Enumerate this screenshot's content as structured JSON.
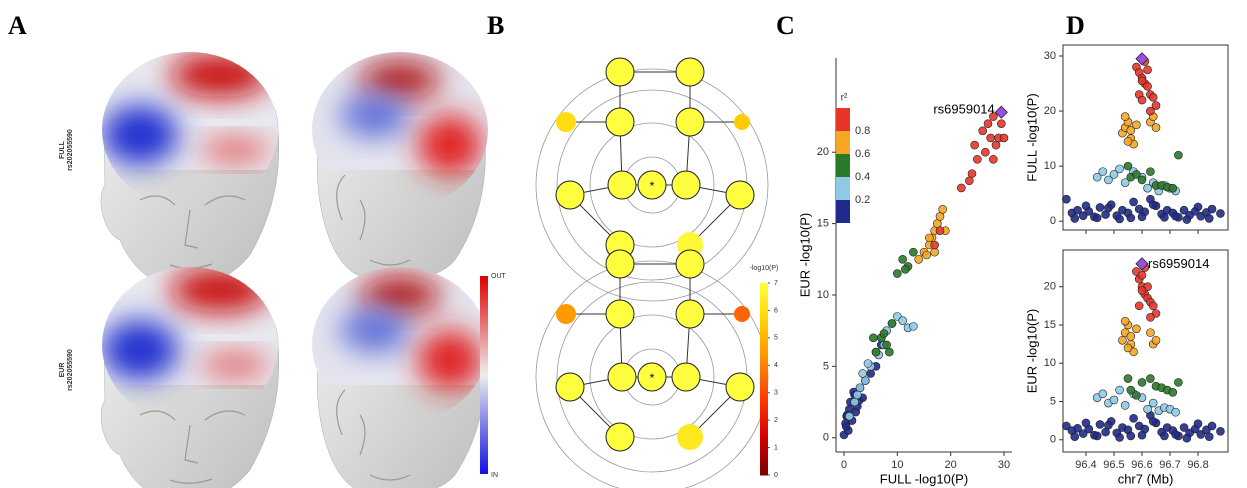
{
  "panel_labels": [
    "A",
    "B",
    "C",
    "D"
  ],
  "panel_a": {
    "rows": [
      {
        "label": "FULL",
        "snp": "rs202055590"
      },
      {
        "label": "EUR",
        "snp": "rs202055590"
      }
    ],
    "colorbar": {
      "top": "OUT",
      "bottom": "IN"
    }
  },
  "panel_b": {
    "colorbar_title": "-log10(P)",
    "lim": [
      0,
      7
    ],
    "ticks": [
      0,
      1,
      2,
      3,
      4,
      5,
      6,
      7
    ],
    "colormap": [
      "#7a0000",
      "#d40000",
      "#ff3b00",
      "#ff8c00",
      "#ffd000",
      "#ffff40"
    ],
    "center_label": "*",
    "networks": [
      {
        "values": [
          7,
          7,
          7,
          7,
          6,
          5.5,
          7,
          7,
          7,
          7,
          7,
          7,
          6.8
        ]
      },
      {
        "values": [
          7,
          7,
          7,
          7,
          4.5,
          3.5,
          7,
          7,
          7,
          7,
          7,
          7,
          6.3
        ]
      }
    ]
  },
  "chart_data": [
    {
      "type": "scatter",
      "xlabel": "FULL -log10(P)",
      "ylabel": "EUR -log10(P)",
      "xlim": [
        -1.5,
        31.5
      ],
      "ylim": [
        -1,
        26.6
      ],
      "xticks": [
        0,
        10,
        20,
        30
      ],
      "yticks": [
        0,
        5,
        10,
        15,
        20
      ],
      "annotation": "rs6959014",
      "legend": {
        "title": "r²",
        "ticks": [
          0.2,
          0.4,
          0.6,
          0.8
        ],
        "colors": [
          "#1f2a8a",
          "#8ecae6",
          "#2a7a2a",
          "#f5a623",
          "#e8352a"
        ]
      },
      "series": [
        {
          "color": "#1f2a8a",
          "x": [
            0,
            0.3,
            0.5,
            0.8,
            1,
            1.2,
            1.5,
            2,
            2.2,
            2.5,
            3,
            3.5,
            4,
            5,
            0.4,
            1.8,
            2.8,
            6,
            7,
            0.6
          ],
          "values": [
            0.2,
            1,
            1.5,
            0.5,
            2,
            2.5,
            1.2,
            3,
            1.8,
            2.2,
            3.5,
            2.8,
            4,
            4.5,
            0.8,
            3.2,
            2.6,
            5,
            6.5,
            1.6
          ]
        },
        {
          "color": "#8ecae6",
          "x": [
            1,
            2,
            2.5,
            3,
            4,
            5,
            6,
            7,
            8,
            9,
            10,
            11,
            12,
            13,
            3.5,
            4.5,
            6.5,
            7.5
          ],
          "values": [
            1.5,
            2.5,
            3,
            3.5,
            4,
            5,
            6,
            7,
            7.5,
            8,
            8.5,
            8.2,
            7.7,
            7.8,
            4.5,
            5.2,
            5.8,
            6.5
          ]
        },
        {
          "color": "#2a7a2a",
          "x": [
            6,
            7,
            8,
            9,
            10,
            11,
            12,
            13,
            8.5,
            11.5,
            5.5,
            7.5
          ],
          "values": [
            6,
            7,
            6.5,
            8,
            11.5,
            12.5,
            12,
            13,
            6,
            11.8,
            7,
            7.3
          ]
        },
        {
          "color": "#f5a623",
          "x": [
            14,
            15,
            16,
            16.5,
            17,
            17.5,
            18,
            18.5,
            19,
            15.5,
            16,
            17
          ],
          "values": [
            12.5,
            13,
            13.5,
            14,
            14.5,
            15,
            15.5,
            16,
            14.5,
            12.8,
            14,
            13
          ]
        },
        {
          "color": "#e8352a",
          "x": [
            17,
            18,
            22,
            24,
            25,
            26,
            27,
            27.5,
            28,
            28.5,
            29,
            29.5,
            30,
            28,
            26.5,
            24.5,
            23.5
          ],
          "values": [
            13.5,
            14.5,
            17.5,
            18.5,
            19.5,
            21.5,
            22,
            21,
            22.5,
            20.5,
            21,
            22,
            21,
            19.5,
            20,
            20.5,
            18
          ]
        },
        {
          "color": "#9b4fe0",
          "marker": "diamond",
          "x": [
            29.5
          ],
          "values": [
            22.8
          ]
        }
      ]
    },
    {
      "type": "scatter",
      "ylabel": "FULL -log10(P)",
      "xtick_labels": false,
      "xlim": [
        96.318,
        96.907
      ],
      "ylim": [
        -1.6,
        32
      ],
      "xticks": [
        96.4,
        96.5,
        96.6,
        96.7,
        96.8
      ],
      "yticks": [
        0,
        10,
        20,
        30
      ],
      "series": [
        {
          "color": "#1f2a8a",
          "x": [
            96.33,
            96.35,
            96.37,
            96.39,
            96.41,
            96.43,
            96.45,
            96.47,
            96.49,
            96.51,
            96.53,
            96.55,
            96.57,
            96.59,
            96.61,
            96.63,
            96.65,
            96.67,
            96.69,
            96.71,
            96.73,
            96.75,
            96.77,
            96.79,
            96.81,
            96.83,
            96.85,
            96.88,
            96.36,
            96.44,
            96.52,
            96.6,
            96.68,
            96.76,
            96.84,
            96.4,
            96.48,
            96.56,
            96.64,
            96.72,
            96.8
          ],
          "values": [
            4,
            1.5,
            2,
            1,
            1.8,
            0.8,
            2.5,
            1.2,
            3,
            1,
            2,
            1.5,
            3.5,
            2.2,
            1.7,
            4,
            2.8,
            1.3,
            2,
            1.5,
            0.7,
            2,
            1.1,
            1.8,
            0.9,
            1.6,
            2.2,
            1.4,
            0.5,
            0.6,
            0.4,
            0.8,
            0.7,
            0.3,
            0.5,
            2.8,
            2.4,
            0.6,
            3,
            0.9,
            2.6
          ]
        },
        {
          "color": "#8ecae6",
          "x": [
            96.44,
            96.46,
            96.48,
            96.5,
            96.52,
            96.54,
            96.62,
            96.64,
            96.66,
            96.68,
            96.7,
            96.72,
            96.6,
            96.57
          ],
          "values": [
            8,
            9,
            7.5,
            8.5,
            9.5,
            7,
            6,
            7,
            5.5,
            6.5,
            6,
            5.5,
            8,
            9
          ]
        },
        {
          "color": "#2a7a2a",
          "x": [
            96.55,
            96.56,
            96.6,
            96.63,
            96.65,
            96.67,
            96.69,
            96.71,
            96.73,
            96.58
          ],
          "values": [
            10,
            8,
            7.5,
            9,
            6.5,
            6.5,
            6.2,
            6,
            12,
            8.5
          ]
        },
        {
          "color": "#f5a623",
          "x": [
            96.53,
            96.54,
            96.55,
            96.56,
            96.57,
            96.54,
            96.56,
            96.63,
            96.64,
            96.65,
            96.55,
            96.58
          ],
          "values": [
            16,
            17,
            18,
            15,
            14,
            19,
            16.5,
            18,
            19,
            17,
            14.5,
            17.5
          ]
        },
        {
          "color": "#e8352a",
          "x": [
            96.58,
            96.59,
            96.6,
            96.61,
            96.62,
            96.59,
            96.6,
            96.61,
            96.62,
            96.63,
            96.64,
            96.65,
            96.63,
            96.6
          ],
          "values": [
            28,
            27,
            26,
            25,
            24.5,
            23,
            22,
            29,
            27.5,
            23,
            22.5,
            21,
            20,
            25.5
          ]
        },
        {
          "color": "#9b4fe0",
          "marker": "diamond",
          "x": [
            96.6
          ],
          "values": [
            29.5
          ]
        }
      ]
    },
    {
      "type": "scatter",
      "xlabel": "chr7 (Mb)",
      "ylabel": "EUR -log10(P)",
      "annotation": "rs6959014",
      "xlim": [
        96.318,
        96.907
      ],
      "ylim": [
        -1.6,
        24.8
      ],
      "xticks": [
        96.4,
        96.5,
        96.6,
        96.7,
        96.8
      ],
      "yticks": [
        0,
        5,
        10,
        15,
        20
      ],
      "series": [
        {
          "color": "#1f2a8a",
          "x": [
            96.33,
            96.35,
            96.37,
            96.39,
            96.41,
            96.43,
            96.45,
            96.47,
            96.49,
            96.51,
            96.53,
            96.55,
            96.57,
            96.59,
            96.61,
            96.63,
            96.65,
            96.67,
            96.69,
            96.71,
            96.73,
            96.75,
            96.77,
            96.79,
            96.81,
            96.83,
            96.85,
            96.88,
            96.36,
            96.44,
            96.52,
            96.6,
            96.68,
            96.76,
            96.84,
            96.4,
            96.48,
            96.56,
            96.64,
            96.72,
            96.8
          ],
          "values": [
            1.8,
            1.2,
            1.5,
            0.8,
            1.4,
            0.6,
            2,
            1,
            2.4,
            0.9,
            1.6,
            1.3,
            2.8,
            1.8,
            1.4,
            3.2,
            2.2,
            1,
            1.6,
            1.2,
            0.5,
            1.6,
            0.9,
            1.4,
            0.7,
            1.3,
            1.8,
            1.1,
            0.4,
            0.5,
            0.3,
            0.6,
            0.5,
            0.2,
            0.4,
            2.2,
            1.9,
            0.5,
            2.4,
            0.7,
            2.1
          ]
        },
        {
          "color": "#8ecae6",
          "x": [
            96.44,
            96.46,
            96.48,
            96.5,
            96.52,
            96.54,
            96.62,
            96.64,
            96.66,
            96.68,
            96.7,
            96.72,
            96.6,
            96.57
          ],
          "values": [
            5.5,
            6,
            4.8,
            5.2,
            6.5,
            4.5,
            4,
            4.8,
            3.8,
            4.2,
            4,
            3.6,
            5.5,
            6
          ]
        },
        {
          "color": "#2a7a2a",
          "x": [
            96.55,
            96.56,
            96.6,
            96.63,
            96.65,
            96.67,
            96.69,
            96.71,
            96.73,
            96.58
          ],
          "values": [
            8,
            6.5,
            7.5,
            8,
            7,
            6.8,
            6.5,
            6.2,
            7.5,
            5.8
          ]
        },
        {
          "color": "#f5a623",
          "x": [
            96.53,
            96.54,
            96.55,
            96.56,
            96.57,
            96.54,
            96.56,
            96.63,
            96.64,
            96.65,
            96.55,
            96.58
          ],
          "values": [
            13,
            14,
            15,
            12.5,
            11.5,
            15.5,
            13.5,
            14,
            12.5,
            13,
            12,
            14.5
          ]
        },
        {
          "color": "#e8352a",
          "x": [
            96.58,
            96.59,
            96.6,
            96.61,
            96.62,
            96.59,
            96.6,
            96.61,
            96.62,
            96.63,
            96.64,
            96.65,
            96.63,
            96.6
          ],
          "values": [
            22,
            21,
            20,
            19,
            18.5,
            17.5,
            21.5,
            22.5,
            20,
            18,
            17.5,
            16.5,
            16,
            19.5
          ]
        },
        {
          "color": "#9b4fe0",
          "marker": "diamond",
          "x": [
            96.6
          ],
          "values": [
            23
          ]
        }
      ]
    }
  ]
}
